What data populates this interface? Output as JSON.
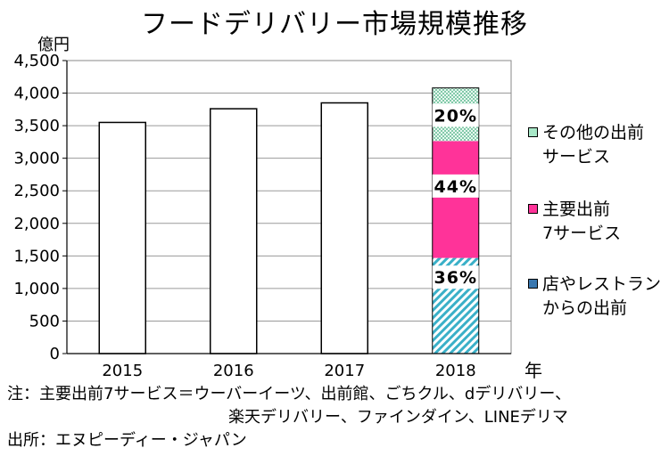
{
  "title": "フードデリバリー市場規模推移",
  "chart_data": {
    "type": "bar",
    "title": "フードデリバリー市場規模推移",
    "ylabel": "億円",
    "xlabel": "年",
    "ylim": [
      0,
      4500
    ],
    "yticks": [
      "0",
      "500",
      "1,000",
      "1,500",
      "2,000",
      "2,500",
      "3,000",
      "3,500",
      "4,000",
      "4,500"
    ],
    "grid": true,
    "legend_position": "right",
    "categories": [
      "2015",
      "2016",
      "2017",
      "2018"
    ],
    "totals": [
      3550,
      3760,
      3850,
      4080
    ],
    "stacked_2018": [
      {
        "name": "店やレストランからの出前",
        "share_percent": 36,
        "label": "36%",
        "value": 1469,
        "color": "#3ab0c8"
      },
      {
        "name": "主要出前7サービス",
        "share_percent": 44,
        "label": "44%",
        "value": 1795,
        "color": "#ff3399"
      },
      {
        "name": "その他の出前サービス",
        "share_percent": 20,
        "label": "20%",
        "value": 816,
        "color": "#7fd6b6"
      }
    ]
  },
  "legend": [
    {
      "line1": "その他の出前",
      "line2": "サービス"
    },
    {
      "line1": "主要出前",
      "line2": "7サービス"
    },
    {
      "line1": "店やレストラン",
      "line2": "からの出前"
    }
  ],
  "notes": {
    "line1": "注：主要出前7サービス＝ウーバーイーツ、出前館、ごちクル、dデリバリー、",
    "line2": "楽天デリバリー、ファインダイン、LINEデリマ",
    "line3": "出所：エヌピーディー・ジャパン"
  }
}
